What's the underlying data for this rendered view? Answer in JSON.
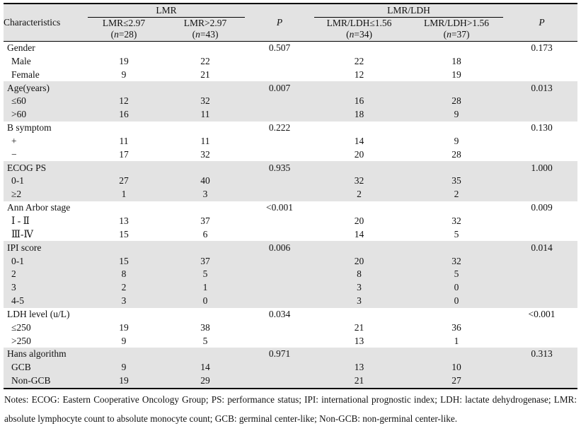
{
  "table": {
    "characteristics_header": "Characteristics",
    "lmr_group": {
      "label": "LMR",
      "p_label": "P",
      "col1": {
        "range": "LMR≤2.97",
        "n_pre": "(",
        "n_char": "n",
        "n_post": "=28)"
      },
      "col2": {
        "range": "LMR>2.97",
        "n_pre": "(",
        "n_char": "n",
        "n_post": "=43)"
      }
    },
    "lmr_ldh_group": {
      "label": "LMR/LDH",
      "p_label": "P",
      "col1": {
        "range": "LMR/LDH≤1.56",
        "n_pre": "(",
        "n_char": "n",
        "n_post": "=34)"
      },
      "col2": {
        "range": "LMR/LDH>1.56",
        "n_pre": "(",
        "n_char": "n",
        "n_post": "=37)"
      }
    },
    "rows": [
      {
        "label": "Gender",
        "indent": false,
        "shaded": false,
        "cells": [
          "",
          "",
          "0.507",
          "",
          "",
          "0.173"
        ]
      },
      {
        "label": "Male",
        "indent": true,
        "shaded": false,
        "cells": [
          "19",
          "22",
          "",
          "22",
          "18",
          ""
        ]
      },
      {
        "label": "Female",
        "indent": true,
        "shaded": false,
        "cells": [
          "9",
          "21",
          "",
          "12",
          "19",
          ""
        ]
      },
      {
        "label": "Age(years)",
        "indent": false,
        "shaded": true,
        "cells": [
          "",
          "",
          "0.007",
          "",
          "",
          "0.013"
        ]
      },
      {
        "label": "≤60",
        "indent": true,
        "shaded": true,
        "cells": [
          "12",
          "32",
          "",
          "16",
          "28",
          ""
        ]
      },
      {
        "label": ">60",
        "indent": true,
        "shaded": true,
        "cells": [
          "16",
          "11",
          "",
          "18",
          "9",
          ""
        ]
      },
      {
        "label": "B symptom",
        "indent": false,
        "shaded": false,
        "cells": [
          "",
          "",
          "0.222",
          "",
          "",
          "0.130"
        ]
      },
      {
        "label": "+",
        "indent": true,
        "shaded": false,
        "cells": [
          "11",
          "11",
          "",
          "14",
          "9",
          ""
        ]
      },
      {
        "label": "−",
        "indent": true,
        "shaded": false,
        "cells": [
          "17",
          "32",
          "",
          "20",
          "28",
          ""
        ]
      },
      {
        "label": "ECOG PS",
        "indent": false,
        "shaded": true,
        "cells": [
          "",
          "",
          "0.935",
          "",
          "",
          "1.000"
        ]
      },
      {
        "label": "0-1",
        "indent": true,
        "shaded": true,
        "cells": [
          "27",
          "40",
          "",
          "32",
          "35",
          ""
        ]
      },
      {
        "label": "≥2",
        "indent": true,
        "shaded": true,
        "cells": [
          "1",
          "3",
          "",
          "2",
          "2",
          ""
        ]
      },
      {
        "label": "Ann Arbor stage",
        "indent": false,
        "shaded": false,
        "cells": [
          "",
          "",
          "<0.001",
          "",
          "",
          "0.009"
        ]
      },
      {
        "label": "Ⅰ - Ⅱ",
        "indent": true,
        "shaded": false,
        "cells": [
          "13",
          "37",
          "",
          "20",
          "32",
          ""
        ]
      },
      {
        "label": "Ⅲ-Ⅳ",
        "indent": true,
        "shaded": false,
        "cells": [
          "15",
          "6",
          "",
          "14",
          "5",
          ""
        ]
      },
      {
        "label": "IPI score",
        "indent": false,
        "shaded": true,
        "cells": [
          "",
          "",
          "0.006",
          "",
          "",
          "0.014"
        ]
      },
      {
        "label": "0-1",
        "indent": true,
        "shaded": true,
        "cells": [
          "15",
          "37",
          "",
          "20",
          "32",
          ""
        ]
      },
      {
        "label": "2",
        "indent": true,
        "shaded": true,
        "cells": [
          "8",
          "5",
          "",
          "8",
          "5",
          ""
        ]
      },
      {
        "label": "3",
        "indent": true,
        "shaded": true,
        "cells": [
          "2",
          "1",
          "",
          "3",
          "0",
          ""
        ]
      },
      {
        "label": "4-5",
        "indent": true,
        "shaded": true,
        "cells": [
          "3",
          "0",
          "",
          "3",
          "0",
          ""
        ]
      },
      {
        "label": "LDH level (u/L)",
        "indent": false,
        "shaded": false,
        "cells": [
          "",
          "",
          "0.034",
          "",
          "",
          "<0.001"
        ]
      },
      {
        "label": "≤250",
        "indent": true,
        "shaded": false,
        "cells": [
          "19",
          "38",
          "",
          "21",
          "36",
          ""
        ]
      },
      {
        "label": ">250",
        "indent": true,
        "shaded": false,
        "cells": [
          "9",
          "5",
          "",
          "13",
          "1",
          ""
        ]
      },
      {
        "label": "Hans algorithm",
        "indent": false,
        "shaded": true,
        "cells": [
          "",
          "",
          "0.971",
          "",
          "",
          "0.313"
        ]
      },
      {
        "label": "GCB",
        "indent": true,
        "shaded": true,
        "cells": [
          "9",
          "14",
          "",
          "13",
          "10",
          ""
        ]
      },
      {
        "label": "Non-GCB",
        "indent": true,
        "shaded": true,
        "cells": [
          "19",
          "29",
          "",
          "21",
          "27",
          ""
        ]
      }
    ]
  },
  "notes": {
    "line1": "Notes: ECOG: Eastern Cooperative Oncology Group; PS: performance status; IPI: international prognostic index; LDH: lactate dehydrogenase; LMR:",
    "line2": "absolute lymphocyte count to absolute monocyte count; GCB: germinal center-like; Non-GCB: non-germinal center-like."
  },
  "colors": {
    "shade": "#e3e3e3",
    "border": "#000000",
    "text": "#111111",
    "background": "#ffffff"
  }
}
